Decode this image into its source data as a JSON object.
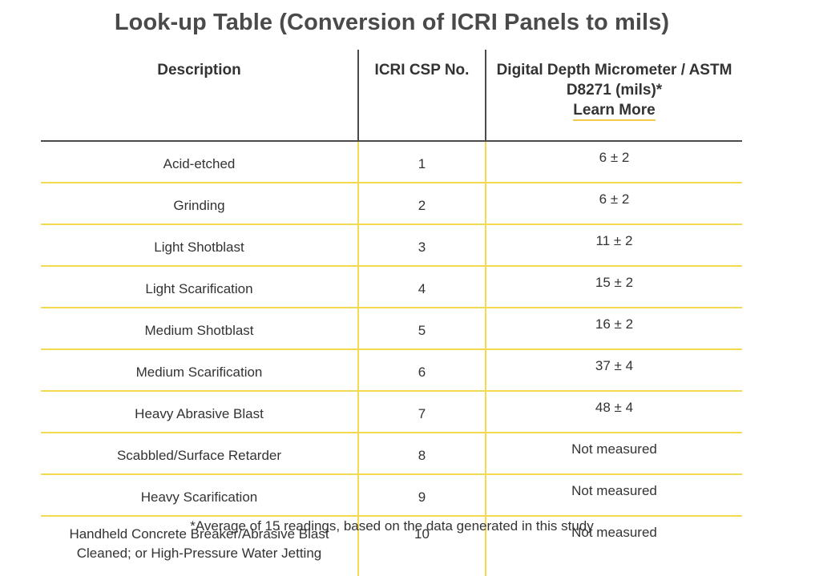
{
  "title": "Look-up Table (Conversion of ICRI Panels to mils)",
  "headers": {
    "description": "Description",
    "csp": "ICRI CSP No.",
    "depth": "Digital Depth Micrometer / ASTM D8271 (mils)*",
    "learn_more": "Learn More"
  },
  "rows": [
    {
      "description": "Acid-etched",
      "csp": "1",
      "depth": "6 ± 2"
    },
    {
      "description": "Grinding",
      "csp": "2",
      "depth": "6 ± 2"
    },
    {
      "description": "Light Shotblast",
      "csp": "3",
      "depth": "11 ± 2"
    },
    {
      "description": "Light Scarification",
      "csp": "4",
      "depth": "15 ± 2"
    },
    {
      "description": "Medium Shotblast",
      "csp": "5",
      "depth": "16 ± 2"
    },
    {
      "description": "Medium Scarification",
      "csp": "6",
      "depth": "37 ± 4"
    },
    {
      "description": "Heavy Abrasive Blast",
      "csp": "7",
      "depth": "48 ± 4"
    },
    {
      "description": "Scabbled/Surface Retarder",
      "csp": "8",
      "depth": "Not measured"
    },
    {
      "description": "Heavy Scarification",
      "csp": "9",
      "depth": "Not measured"
    },
    {
      "description": "Handheld Concrete Breaker/Abrasive Blast Cleaned; or High-Pressure Water Jetting",
      "csp": "10",
      "depth": "Not measured"
    }
  ],
  "footnote": "*Average of 15 readings, based on the data generated in this study",
  "colors": {
    "header_rule": "#4a4a4a",
    "row_rule": "#f5d94e",
    "link_underline": "#f2c94c"
  }
}
